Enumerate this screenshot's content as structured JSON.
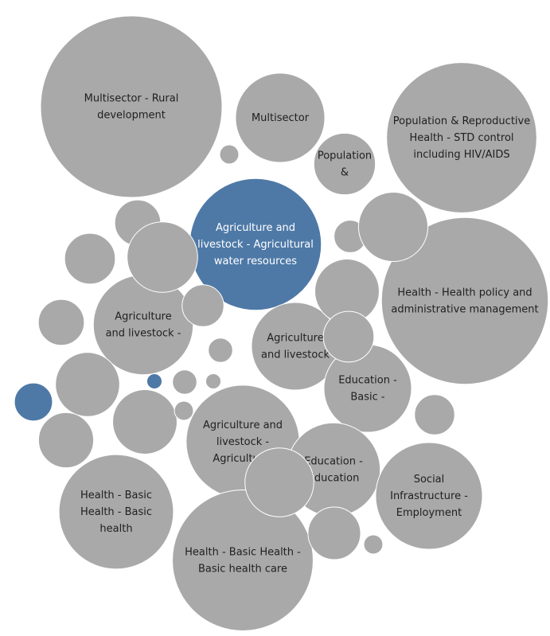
{
  "chart_data": {
    "type": "bubble",
    "title": "",
    "colors": {
      "default": "#a9a9a9",
      "highlight": "#4e79a7",
      "label_dark": "#1f1f1f",
      "label_light": "#ffffff"
    },
    "bubbles": [
      {
        "id": "multisector-rural-development",
        "label": [
          "Multisector - Rural",
          "development"
        ],
        "value": 100,
        "highlight": false
      },
      {
        "id": "multisector",
        "label": [
          "Multisector"
        ],
        "value": 24.2,
        "highlight": false
      },
      {
        "id": "population-std-control",
        "label": [
          "Population & Reproductive",
          "Health - STD control",
          "including HIV/AIDS"
        ],
        "value": 68.5,
        "highlight": false
      },
      {
        "id": "population-short",
        "label": [
          "Population",
          "&"
        ],
        "value": 11.5,
        "highlight": false
      },
      {
        "id": "agri-water-resources",
        "label": [
          "Agriculture and",
          "livestock - Agricultural",
          "water resources"
        ],
        "value": 52.7,
        "highlight": true
      },
      {
        "id": "health-policy-admin",
        "label": [
          "Health - Health policy and",
          "administrative management"
        ],
        "value": 84.4,
        "highlight": false
      },
      {
        "id": "agri-livestock-a",
        "label": [
          "Agriculture",
          "and livestock -"
        ],
        "value": 30.3,
        "highlight": false
      },
      {
        "id": "agri-livestock-b",
        "label": [
          "Agriculture",
          "and livestock"
        ],
        "value": 23.3,
        "highlight": false
      },
      {
        "id": "education-basic",
        "label": [
          "Education -",
          "Basic -"
        ],
        "value": 23.3,
        "highlight": false
      },
      {
        "id": "agri-agricultural",
        "label": [
          "Agriculture and",
          "livestock -",
          "Agricultural"
        ],
        "value": 38.9,
        "highlight": false
      },
      {
        "id": "education-education",
        "label": [
          "Education -",
          "Education"
        ],
        "value": 26.5,
        "highlight": false
      },
      {
        "id": "social-infra-employment",
        "label": [
          "Social",
          "Infrastructure -",
          "Employment"
        ],
        "value": 34.6,
        "highlight": false
      },
      {
        "id": "health-basic-basic",
        "label": [
          "Health - Basic",
          "Health - Basic",
          "health"
        ],
        "value": 39.8,
        "highlight": false
      },
      {
        "id": "health-basic-care",
        "label": [
          "Health - Basic Health -",
          "Basic health care"
        ],
        "value": 60.2,
        "highlight": false
      },
      {
        "id": "unlabeled-01",
        "label": [],
        "value": 6.4,
        "highlight": false
      },
      {
        "id": "unlabeled-02",
        "label": [],
        "value": 7.8,
        "highlight": false
      },
      {
        "id": "unlabeled-03",
        "label": [],
        "value": 1.1,
        "highlight": false
      },
      {
        "id": "unlabeled-04",
        "label": [],
        "value": 15.1,
        "highlight": false
      },
      {
        "id": "unlabeled-05",
        "label": [],
        "value": 5.3,
        "highlight": false
      },
      {
        "id": "unlabeled-06",
        "label": [],
        "value": 6.4,
        "highlight": false
      },
      {
        "id": "unlabeled-07",
        "label": [],
        "value": 3.2,
        "highlight": false
      },
      {
        "id": "unlabeled-08",
        "label": [],
        "value": 14.6,
        "highlight": false
      },
      {
        "id": "unlabeled-09",
        "label": [],
        "value": 1.8,
        "highlight": false
      },
      {
        "id": "unlabeled-10",
        "label": [],
        "value": 12.6,
        "highlight": false
      },
      {
        "id": "unlabeled-11",
        "label": [],
        "value": 12.5,
        "highlight": false
      },
      {
        "id": "unlabeled-12",
        "label": [],
        "value": 1.8,
        "highlight": false
      },
      {
        "id": "unlabeled-13",
        "label": [],
        "value": 12.6,
        "highlight": false
      },
      {
        "id": "unlabeled-14",
        "label": [],
        "value": 4.4,
        "highlight": true
      },
      {
        "id": "unlabeled-15",
        "label": [],
        "value": 0.7,
        "highlight": false
      },
      {
        "id": "unlabeled-16",
        "label": [],
        "value": 4.9,
        "highlight": false
      },
      {
        "id": "unlabeled-17",
        "label": [],
        "value": 0.7,
        "highlight": true
      },
      {
        "id": "unlabeled-18",
        "label": [],
        "value": 9.2,
        "highlight": false
      },
      {
        "id": "unlabeled-19",
        "label": [],
        "value": 1.1,
        "highlight": false
      },
      {
        "id": "unlabeled-20",
        "label": [],
        "value": 14.4,
        "highlight": false
      },
      {
        "id": "unlabeled-21",
        "label": [],
        "value": 8.4,
        "highlight": false
      },
      {
        "id": "unlabeled-22",
        "label": [],
        "value": 1.1,
        "highlight": false
      },
      {
        "id": "unlabeled-23",
        "label": [],
        "value": 7.8,
        "highlight": false
      },
      {
        "id": "unlabeled-24",
        "label": [],
        "value": 3.2,
        "highlight": false
      },
      {
        "id": "unlabeled-25",
        "label": [],
        "value": 2.0,
        "highlight": false
      },
      {
        "id": "unlabeled-26",
        "label": [],
        "value": 5.3,
        "highlight": true
      },
      {
        "id": "unlabeled-27",
        "label": [],
        "value": 3.5,
        "highlight": false
      }
    ]
  }
}
